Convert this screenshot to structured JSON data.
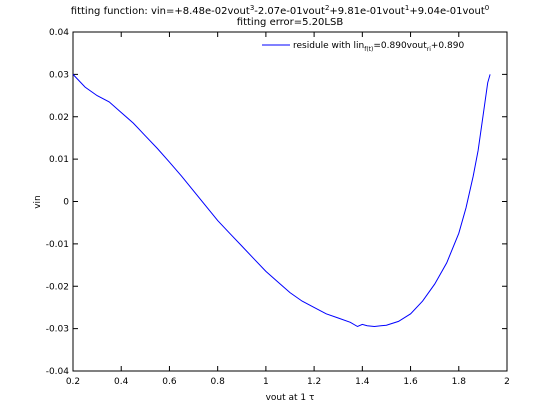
{
  "chart_data": {
    "type": "line",
    "title": {
      "line1": {
        "prefix": "fitting function: vin=+8.48e-02vout",
        "e3": "3",
        "t1": "-2.07e-01vout",
        "e2": "2",
        "t2": "+9.81e-01vout",
        "e1": "1",
        "t3": "+9.04e-01vout",
        "e0": "0"
      },
      "line2": "fitting error=5.20LSB"
    },
    "xlabel": {
      "text": "vout at 1 ",
      "symbol": "τ"
    },
    "ylabel": "vin",
    "xlim": [
      0.2,
      2.0
    ],
    "ylim": [
      -0.04,
      0.04
    ],
    "xticks": [
      "0.2",
      "0.4",
      "0.6",
      "0.8",
      "1",
      "1.2",
      "1.4",
      "1.6",
      "1.8",
      "2"
    ],
    "yticks": [
      "0.04",
      "0.03",
      "0.02",
      "0.01",
      "0",
      "-0.01",
      "-0.02",
      "-0.03",
      "-0.04"
    ],
    "grid": false,
    "legend_position": "top-right",
    "legend": {
      "label_main": "residule with lin",
      "sub1": "f(t)",
      "label_mid": "=0.890vout",
      "sub2": "ri",
      "label_end": "+0.890"
    },
    "series": [
      {
        "color": "#0000ff",
        "x": [
          0.2,
          0.25,
          0.3,
          0.35,
          0.4,
          0.45,
          0.5,
          0.55,
          0.6,
          0.65,
          0.7,
          0.75,
          0.8,
          0.85,
          0.9,
          0.95,
          1.0,
          1.05,
          1.1,
          1.15,
          1.2,
          1.25,
          1.3,
          1.35,
          1.38,
          1.4,
          1.42,
          1.45,
          1.5,
          1.55,
          1.6,
          1.65,
          1.7,
          1.75,
          1.8,
          1.83,
          1.86,
          1.88,
          1.9,
          1.92,
          1.93
        ],
        "y": [
          0.03,
          0.027,
          0.025,
          0.0235,
          0.021,
          0.0185,
          0.0155,
          0.0125,
          0.0093,
          0.006,
          0.0025,
          -0.001,
          -0.0045,
          -0.0075,
          -0.0105,
          -0.0135,
          -0.0165,
          -0.019,
          -0.0215,
          -0.0235,
          -0.025,
          -0.0265,
          -0.0275,
          -0.0285,
          -0.0295,
          -0.029,
          -0.0293,
          -0.0295,
          -0.0292,
          -0.0283,
          -0.0265,
          -0.0235,
          -0.0195,
          -0.0145,
          -0.0075,
          -0.0015,
          0.006,
          0.012,
          0.02,
          0.028,
          0.03
        ]
      }
    ]
  }
}
